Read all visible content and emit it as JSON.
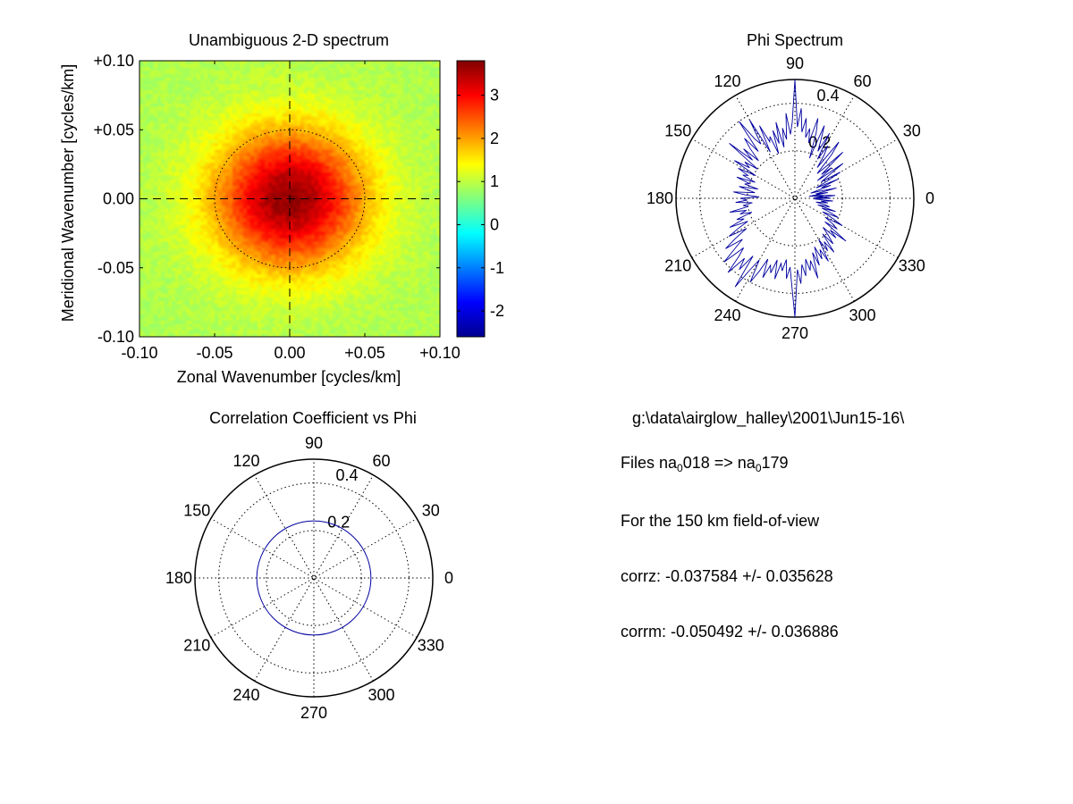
{
  "chart_data": [
    {
      "type": "heatmap",
      "title": "Unambiguous 2-D spectrum",
      "xlabel": "Zonal Wavenumber [cycles/km]",
      "ylabel": "Meridional Wavenumber [cycles/km]",
      "xlim": [
        -0.1,
        0.1
      ],
      "ylim": [
        -0.1,
        0.1
      ],
      "x_ticks": [
        "-0.10",
        "-0.05",
        "0.00",
        "+0.05",
        "+0.10"
      ],
      "y_ticks": [
        "+0.10",
        "+0.05",
        "0.00",
        "-0.05",
        "-0.10"
      ],
      "colorbar": {
        "colormap": "jet",
        "clim": [
          -2.6,
          3.8
        ],
        "ticks": [
          "3",
          "2",
          "1",
          "0",
          "-1",
          "-2"
        ],
        "tick_values": [
          3,
          2,
          1,
          0,
          -1,
          -2
        ]
      },
      "field": {
        "peak_center": [
          0.0,
          0.0
        ],
        "peak_value": 3.7,
        "background_value": 0.9,
        "falloff_scale": 0.035
      },
      "reference_circle_radius": 0.05,
      "crosshair": "dashed lines at 0",
      "grid": false
    },
    {
      "type": "polar-line",
      "title": "Phi Spectrum",
      "angle_ticks": [
        "0",
        "30",
        "60",
        "90",
        "120",
        "150",
        "180",
        "210",
        "240",
        "270",
        "300",
        "330"
      ],
      "radial_ticks": [
        "0.2",
        "0.4"
      ],
      "rmax": 0.5,
      "series": [
        {
          "color": "#0000a0",
          "angle_step_deg": 2,
          "values": [
            0.15,
            0.08,
            0.12,
            0.1,
            0.06,
            0.14,
            0.09,
            0.18,
            0.11,
            0.07,
            0.16,
            0.12,
            0.2,
            0.1,
            0.15,
            0.22,
            0.13,
            0.17,
            0.25,
            0.12,
            0.2,
            0.15,
            0.28,
            0.18,
            0.14,
            0.24,
            0.3,
            0.16,
            0.22,
            0.26,
            0.19,
            0.31,
            0.22,
            0.27,
            0.33,
            0.18,
            0.29,
            0.35,
            0.24,
            0.3,
            0.26,
            0.34,
            0.28,
            0.38,
            0.3,
            0.5,
            0.32,
            0.27,
            0.36,
            0.25,
            0.3,
            0.22,
            0.33,
            0.24,
            0.3,
            0.2,
            0.28,
            0.26,
            0.34,
            0.22,
            0.38,
            0.27,
            0.3,
            0.4,
            0.25,
            0.33,
            0.28,
            0.22,
            0.3,
            0.24,
            0.36,
            0.2,
            0.26,
            0.23,
            0.3,
            0.19,
            0.27,
            0.22,
            0.24,
            0.18,
            0.26,
            0.2,
            0.22,
            0.16,
            0.24,
            0.2,
            0.17,
            0.26,
            0.21,
            0.15,
            0.23,
            0.2,
            0.25,
            0.18,
            0.22,
            0.2,
            0.28,
            0.21,
            0.24,
            0.19,
            0.26,
            0.23,
            0.3,
            0.22,
            0.27,
            0.32,
            0.24,
            0.3,
            0.36,
            0.28,
            0.33,
            0.4,
            0.3,
            0.34,
            0.42,
            0.33,
            0.38,
            0.3,
            0.45,
            0.35,
            0.3,
            0.4,
            0.34,
            0.28,
            0.36,
            0.3,
            0.33,
            0.27,
            0.35,
            0.28,
            0.31,
            0.26,
            0.34,
            0.29,
            0.37,
            0.5,
            0.3,
            0.36,
            0.28,
            0.33,
            0.26,
            0.31,
            0.27,
            0.35,
            0.24,
            0.3,
            0.22,
            0.28,
            0.24,
            0.3,
            0.2,
            0.26,
            0.22,
            0.28,
            0.19,
            0.25,
            0.21,
            0.17,
            0.24,
            0.2,
            0.28,
            0.16,
            0.22,
            0.19,
            0.15,
            0.23,
            0.18,
            0.13,
            0.2,
            0.16,
            0.12,
            0.18,
            0.1,
            0.15,
            0.13,
            0.09,
            0.14,
            0.11,
            0.16,
            0.08,
            0.13,
            0.1,
            0.17,
            0.12,
            0.09
          ]
        }
      ],
      "grid": true
    },
    {
      "type": "polar-line",
      "title": "Correlation Coefficient vs Phi",
      "angle_ticks": [
        "0",
        "30",
        "60",
        "90",
        "120",
        "150",
        "180",
        "210",
        "240",
        "270",
        "300",
        "330"
      ],
      "radial_ticks": [
        "0.2",
        "0.4"
      ],
      "rmax": 0.5,
      "series": [
        {
          "color": "#0000a0",
          "constant_value": 0.24
        }
      ],
      "grid": true
    }
  ],
  "info": {
    "path": "g:\\data\\airglow_halley\\2001\\Jun15-16\\",
    "files_prefix": "Files  na",
    "files_sub1": "0",
    "files_mid": "018  =>  na",
    "files_sub2": "0",
    "files_end": "179",
    "fov": "For the  150 km field-of-view",
    "corrz": "corrz: -0.037584 +/- 0.035628",
    "corrm": "corrm: -0.050492 +/- 0.036886"
  }
}
